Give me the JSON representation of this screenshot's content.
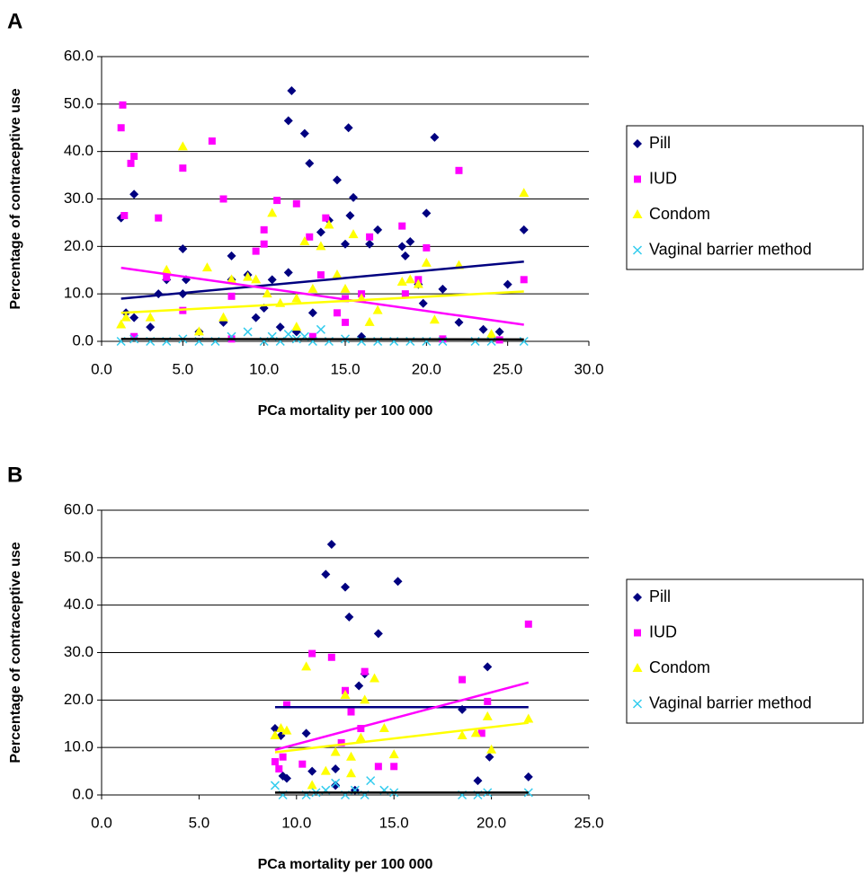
{
  "chart_data": [
    {
      "type": "scatter",
      "panel_label": "A",
      "xlabel": "PCa mortality per 100 000",
      "ylabel": "Percentage of contraceptive use",
      "xlim": [
        0,
        30
      ],
      "ylim": [
        0,
        60
      ],
      "grid": true,
      "legend": "right",
      "xticks": [
        {
          "value": 0,
          "label": "0.0"
        },
        {
          "value": 5,
          "label": "5.0"
        },
        {
          "value": 10,
          "label": "10.0"
        },
        {
          "value": 15,
          "label": "15.0"
        },
        {
          "value": 20,
          "label": "20.0"
        },
        {
          "value": 25,
          "label": "25.0"
        },
        {
          "value": 30,
          "label": "30.0"
        }
      ],
      "yticks": [
        {
          "value": 0,
          "label": "0.0"
        },
        {
          "value": 10,
          "label": "10.0"
        },
        {
          "value": 20,
          "label": "20.0"
        },
        {
          "value": 30,
          "label": "30.0"
        },
        {
          "value": 40,
          "label": "40.0"
        },
        {
          "value": 50,
          "label": "50.0"
        },
        {
          "value": 60,
          "label": "60.0"
        }
      ],
      "series": [
        {
          "name": "Pill",
          "color": "#000080",
          "marker": "diamond",
          "x": [
            1.2,
            1.5,
            2,
            2,
            3.5,
            4,
            5,
            5,
            5.2,
            7.5,
            8,
            8,
            9,
            9.5,
            10,
            10.5,
            11,
            11.5,
            11.5,
            11.7,
            12.5,
            12.8,
            13,
            13.5,
            14,
            14.5,
            15,
            15.2,
            15.3,
            15.5,
            16.5,
            17,
            18.5,
            18.7,
            19,
            19.5,
            19.8,
            20,
            20.5,
            21,
            22,
            23.5,
            24.5,
            25,
            26,
            3,
            6,
            12,
            16
          ],
          "values": [
            26,
            6,
            31,
            5,
            10,
            13,
            19.5,
            10,
            13,
            4,
            18,
            13,
            14,
            5,
            7,
            13,
            3,
            14.5,
            46.5,
            52.8,
            43.8,
            37.5,
            6,
            23,
            25.5,
            34,
            20.5,
            45,
            26.5,
            30.3,
            20.5,
            23.5,
            20,
            18,
            21,
            12,
            8,
            27,
            43,
            11,
            4,
            2.5,
            2,
            12,
            23.5,
            3,
            2,
            2,
            1
          ],
          "trend": {
            "color": "#000080",
            "x": [
              1.2,
              26
            ],
            "values": [
              9,
              16.8
            ]
          }
        },
        {
          "name": "IUD",
          "color": "#ff00ff",
          "marker": "square",
          "x": [
            1.2,
            1.3,
            1.4,
            1.8,
            2,
            3.5,
            4,
            5,
            5,
            6.8,
            7.5,
            8,
            9.5,
            10,
            10,
            10.8,
            12,
            12.8,
            13.5,
            13.8,
            14.5,
            15,
            15,
            16,
            16.5,
            18.5,
            18.7,
            19.5,
            20,
            22,
            26,
            2,
            8,
            13,
            21,
            24.5
          ],
          "values": [
            45,
            49.8,
            26.5,
            37.5,
            39,
            26,
            13.5,
            36.5,
            6.5,
            42.2,
            30,
            9.5,
            19,
            20.5,
            23.5,
            29.7,
            29,
            22,
            14,
            26,
            6,
            4,
            9,
            10,
            22,
            24.3,
            10,
            13,
            19.7,
            36,
            13,
            1,
            0.5,
            1,
            0.5,
            0.3
          ],
          "trend": {
            "color": "#ff00ff",
            "x": [
              1.2,
              26
            ],
            "values": [
              15.5,
              3.5
            ]
          }
        },
        {
          "name": "Condom",
          "color": "#ffff00",
          "marker": "triangle",
          "x": [
            1.2,
            1.5,
            3,
            4,
            5,
            6,
            6.5,
            8,
            9,
            9.5,
            10.2,
            10.5,
            11,
            12,
            12.5,
            13,
            13.5,
            14,
            14.5,
            15,
            15.5,
            16,
            16.5,
            17,
            18.5,
            19,
            19.5,
            20,
            20.5,
            22,
            24,
            26,
            7.5,
            12
          ],
          "values": [
            3.5,
            5,
            5,
            15,
            41,
            2,
            15.5,
            13,
            13.5,
            13,
            10,
            27,
            8,
            9,
            21,
            11,
            20,
            24.5,
            14,
            11,
            22.5,
            9,
            4,
            6.5,
            12.5,
            13,
            12,
            16.5,
            4.5,
            16,
            1.5,
            31.2,
            5,
            3
          ],
          "trend": {
            "color": "#ffff00",
            "x": [
              1.2,
              26
            ],
            "values": [
              6,
              10.5
            ]
          }
        },
        {
          "name": "Vaginal barrier method",
          "color": "#33ccee",
          "marker": "cross",
          "x": [
            1.2,
            2,
            3,
            4,
            5,
            6,
            7,
            8,
            9,
            10,
            10.5,
            11,
            11.5,
            12,
            12.5,
            13,
            13.5,
            14,
            15,
            16,
            17,
            18,
            19,
            20,
            21,
            23,
            24,
            26
          ],
          "values": [
            0,
            0.5,
            0,
            0,
            0.5,
            0,
            0,
            1,
            2,
            0,
            1,
            0,
            1.5,
            0.5,
            1,
            0,
            2.5,
            0,
            0.5,
            0,
            0,
            0,
            0,
            0,
            0,
            0,
            0,
            0
          ],
          "trend": {
            "color": "#000000",
            "x": [
              1.2,
              26
            ],
            "values": [
              0.5,
              0.4
            ]
          }
        }
      ]
    },
    {
      "type": "scatter",
      "panel_label": "B",
      "xlabel": "PCa mortality per 100 000",
      "ylabel": "Percentage of contraceptive use",
      "xlim": [
        0,
        25
      ],
      "ylim": [
        0,
        60
      ],
      "grid": true,
      "legend": "right",
      "xticks": [
        {
          "value": 0,
          "label": "0.0"
        },
        {
          "value": 5,
          "label": "5.0"
        },
        {
          "value": 10,
          "label": "10.0"
        },
        {
          "value": 15,
          "label": "15.0"
        },
        {
          "value": 20,
          "label": "20.0"
        },
        {
          "value": 25,
          "label": "25.0"
        }
      ],
      "yticks": [
        {
          "value": 0,
          "label": "0.0"
        },
        {
          "value": 10,
          "label": "10.0"
        },
        {
          "value": 20,
          "label": "20.0"
        },
        {
          "value": 30,
          "label": "30.0"
        },
        {
          "value": 40,
          "label": "40.0"
        },
        {
          "value": 50,
          "label": "50.0"
        },
        {
          "value": 60,
          "label": "60.0"
        }
      ],
      "series": [
        {
          "name": "Pill",
          "color": "#000080",
          "marker": "diamond",
          "x": [
            8.9,
            9.2,
            9.3,
            9.5,
            10.5,
            10.8,
            11.5,
            11.8,
            12,
            12.5,
            12.7,
            13.2,
            13.5,
            14.2,
            15.2,
            18.5,
            19.3,
            19.8,
            19.9,
            21.9,
            12,
            13
          ],
          "values": [
            14,
            12.5,
            4,
            3.5,
            13,
            5,
            46.5,
            52.8,
            5.5,
            43.8,
            37.5,
            23,
            25.5,
            34,
            45,
            18,
            3,
            27,
            8,
            3.8,
            2,
            1
          ],
          "trend": {
            "color": "#000080",
            "x": [
              8.9,
              21.9
            ],
            "values": [
              18.5,
              18.5
            ]
          }
        },
        {
          "name": "IUD",
          "color": "#ff00ff",
          "marker": "square",
          "x": [
            8.9,
            9.1,
            9.3,
            9.5,
            10.3,
            10.8,
            11.8,
            12.5,
            12.8,
            13.3,
            13.5,
            14.2,
            15,
            18.5,
            19.5,
            19.8,
            21.9,
            12.3
          ],
          "values": [
            7,
            5.5,
            8,
            19,
            6.5,
            29.8,
            29,
            22,
            17.5,
            14,
            26,
            6,
            6,
            24.3,
            13,
            19.7,
            36,
            11
          ],
          "trend": {
            "color": "#ff00ff",
            "x": [
              8.9,
              21.9
            ],
            "values": [
              9.5,
              23.7
            ]
          }
        },
        {
          "name": "Condom",
          "color": "#ffff00",
          "marker": "triangle",
          "x": [
            8.9,
            9.2,
            9.5,
            10.5,
            10.8,
            11.5,
            12,
            12.5,
            12.8,
            13.3,
            13.5,
            14,
            14.5,
            15,
            18.5,
            19.2,
            19.8,
            20,
            21.9,
            12.8
          ],
          "values": [
            12.5,
            14,
            13.5,
            27,
            2,
            5,
            9,
            21,
            8,
            12,
            20,
            24.5,
            14,
            8.5,
            12.5,
            13,
            16.5,
            9.5,
            16,
            4.5
          ],
          "trend": {
            "color": "#ffff00",
            "x": [
              8.9,
              21.9
            ],
            "values": [
              9,
              15.2
            ]
          }
        },
        {
          "name": "Vaginal barrier method",
          "color": "#33ccee",
          "marker": "cross",
          "x": [
            8.9,
            9.3,
            10.5,
            11,
            11.5,
            12,
            12.5,
            13,
            13.5,
            13.8,
            14.5,
            15,
            18.5,
            19.3,
            19.8,
            21.9
          ],
          "values": [
            2,
            0,
            0,
            0.5,
            1,
            2.5,
            0,
            1,
            0,
            3,
            1,
            0.5,
            0,
            0,
            0.5,
            0.5
          ],
          "trend": {
            "color": "#000000",
            "x": [
              8.9,
              21.9
            ],
            "values": [
              0.5,
              0.5
            ]
          }
        }
      ]
    }
  ]
}
